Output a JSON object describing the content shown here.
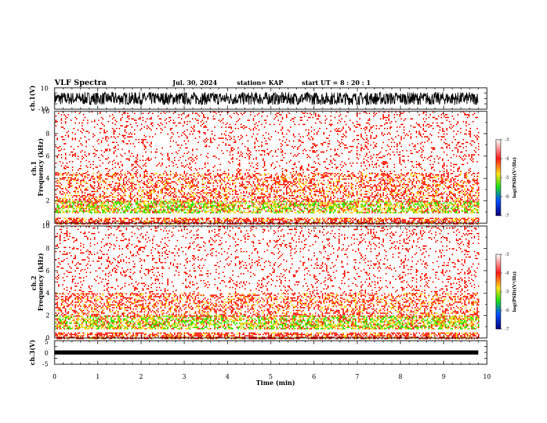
{
  "header": {
    "title": "VLF Spectra",
    "date": "Jul. 30, 2024",
    "station": "station= KAP",
    "start": "start UT =  8 : 20 : 1"
  },
  "colors": {
    "spectrogram_background": "#ffffff",
    "low_power": "#ff2a1a",
    "mid_power": "#ffd21a",
    "high_power": "#32e000",
    "trace": "#000000"
  },
  "chart_data": [
    {
      "type": "line",
      "panel": "waveform-ch1",
      "ylabel": "ch.1(V)",
      "ylim": [
        -10,
        10
      ],
      "ytick_labels": [
        "10",
        "-10"
      ],
      "xlim": [
        0,
        10
      ],
      "data_end_min": 9.8,
      "signal_band_V": [
        -6,
        6
      ],
      "mean_V": 0
    },
    {
      "type": "heatmap",
      "panel": "spectrogram-ch1",
      "ylabel": "ch.1\nFrequency (kHz)",
      "ylim": [
        0,
        10
      ],
      "ytick_labels": [
        "0",
        "2",
        "4",
        "6",
        "8",
        "10"
      ],
      "xlim": [
        0,
        10
      ],
      "data_end_min": 9.8,
      "colorbar": {
        "label": "log(PSD)(V²/Hz)",
        "range": [
          -7,
          -3
        ],
        "tick_labels": [
          "-3",
          "-4",
          "-5",
          "-6",
          "-7"
        ]
      },
      "features": {
        "strong_band_kHz": [
          1.0,
          2.0
        ],
        "moderate_band_kHz": [
          2.0,
          4.5
        ],
        "weak_band_kHz": [
          4.5,
          10
        ]
      }
    },
    {
      "type": "heatmap",
      "panel": "spectrogram-ch2",
      "ylabel": "ch.2\nFrequency (kHz)",
      "ylim": [
        0,
        10
      ],
      "ytick_labels": [
        "0",
        "2",
        "4",
        "6",
        "8",
        "10"
      ],
      "xlim": [
        0,
        10
      ],
      "data_end_min": 9.8,
      "colorbar": {
        "label": "log(PSD)(V²/Hz)",
        "range": [
          -7,
          -3
        ],
        "tick_labels": [
          "-3",
          "-4",
          "-5",
          "-6",
          "-7"
        ]
      },
      "features": {
        "strong_band_kHz": [
          0.8,
          2.0
        ],
        "moderate_band_kHz": [
          2.0,
          4.0
        ],
        "weak_band_kHz": [
          4.0,
          10
        ]
      }
    },
    {
      "type": "line",
      "panel": "waveform-ch3",
      "ylabel": "ch.3(V)",
      "ylim": [
        -5,
        5
      ],
      "ytick_labels": [
        "5",
        "0",
        "-5"
      ],
      "xlim": [
        0,
        10
      ],
      "data_end_min": 9.8,
      "signal_band_V": [
        -0.5,
        0.5
      ],
      "mean_V": 0
    }
  ],
  "xaxis": {
    "label": "Time (min)",
    "tick_labels": [
      "0",
      "1",
      "2",
      "3",
      "4",
      "5",
      "6",
      "7",
      "8",
      "9",
      "10"
    ]
  }
}
